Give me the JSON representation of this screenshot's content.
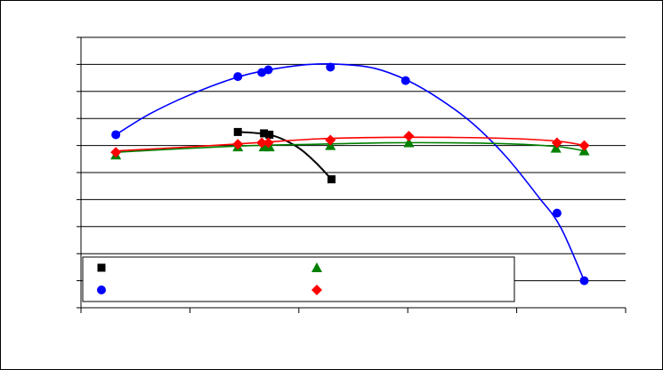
{
  "colors": {
    "black_series": "#000000",
    "blue_series": "#0000ff",
    "green_series": "#008000",
    "red_series": "#ff0000",
    "grid": "#000000",
    "background": "#ffffff"
  },
  "chart_data": {
    "type": "scatter",
    "title": "",
    "xlabel": "",
    "ylabel": "",
    "xlim": [
      0,
      5
    ],
    "ylim": [
      0,
      10
    ],
    "x_ticks": [
      0,
      1,
      2,
      3,
      4,
      5
    ],
    "y_ticks": [
      0,
      1,
      2,
      3,
      4,
      5,
      6,
      7,
      8,
      9,
      10
    ],
    "grid": "horizontal",
    "legend_position": "bottom",
    "legend_labels_visible": false,
    "series": [
      {
        "marker": "square",
        "color": "#000000",
        "points": [
          [
            1.44,
            6.5
          ],
          [
            1.68,
            6.45
          ],
          [
            1.73,
            6.4
          ],
          [
            2.3,
            4.75
          ]
        ],
        "curve": [
          [
            1.44,
            6.5
          ],
          [
            1.58,
            6.47
          ],
          [
            1.73,
            6.4
          ],
          [
            1.87,
            6.2
          ],
          [
            2.02,
            5.85
          ],
          [
            2.16,
            5.35
          ],
          [
            2.3,
            4.75
          ]
        ]
      },
      {
        "marker": "circle",
        "color": "#0000ff",
        "points": [
          [
            0.32,
            6.4
          ],
          [
            1.44,
            8.55
          ],
          [
            1.66,
            8.7
          ],
          [
            1.72,
            8.8
          ],
          [
            2.29,
            8.9
          ],
          [
            2.98,
            8.4
          ],
          [
            4.37,
            3.5
          ],
          [
            4.62,
            1.0
          ]
        ],
        "curve": [
          [
            0.32,
            6.4
          ],
          [
            0.6,
            7.1
          ],
          [
            0.9,
            7.7
          ],
          [
            1.2,
            8.2
          ],
          [
            1.5,
            8.6
          ],
          [
            1.8,
            8.85
          ],
          [
            2.1,
            9.0
          ],
          [
            2.4,
            9.0
          ],
          [
            2.7,
            8.85
          ],
          [
            3.0,
            8.4
          ],
          [
            3.3,
            7.7
          ],
          [
            3.6,
            6.8
          ],
          [
            3.9,
            5.6
          ],
          [
            4.2,
            4.1
          ],
          [
            4.4,
            3.0
          ],
          [
            4.62,
            1.0
          ]
        ]
      },
      {
        "marker": "triangle",
        "color": "#008000",
        "points": [
          [
            0.32,
            5.65
          ],
          [
            1.44,
            5.95
          ],
          [
            1.68,
            5.95
          ],
          [
            1.73,
            5.95
          ],
          [
            2.29,
            6.0
          ],
          [
            3.01,
            6.1
          ],
          [
            4.36,
            5.9
          ],
          [
            4.62,
            5.8
          ]
        ],
        "curve": [
          [
            0.32,
            5.75
          ],
          [
            1.0,
            5.9
          ],
          [
            1.6,
            6.0
          ],
          [
            2.2,
            6.05
          ],
          [
            2.8,
            6.1
          ],
          [
            3.4,
            6.1
          ],
          [
            4.0,
            6.05
          ],
          [
            4.4,
            5.95
          ],
          [
            4.62,
            5.8
          ]
        ]
      },
      {
        "marker": "diamond",
        "color": "#ff0000",
        "points": [
          [
            0.32,
            5.75
          ],
          [
            1.44,
            6.05
          ],
          [
            1.66,
            6.1
          ],
          [
            1.72,
            6.1
          ],
          [
            2.29,
            6.2
          ],
          [
            3.01,
            6.35
          ],
          [
            4.37,
            6.1
          ],
          [
            4.62,
            6.0
          ]
        ],
        "curve": [
          [
            0.32,
            5.8
          ],
          [
            1.0,
            5.95
          ],
          [
            1.6,
            6.1
          ],
          [
            2.2,
            6.25
          ],
          [
            2.8,
            6.3
          ],
          [
            3.4,
            6.3
          ],
          [
            4.0,
            6.25
          ],
          [
            4.4,
            6.15
          ],
          [
            4.62,
            6.0
          ]
        ]
      }
    ]
  }
}
